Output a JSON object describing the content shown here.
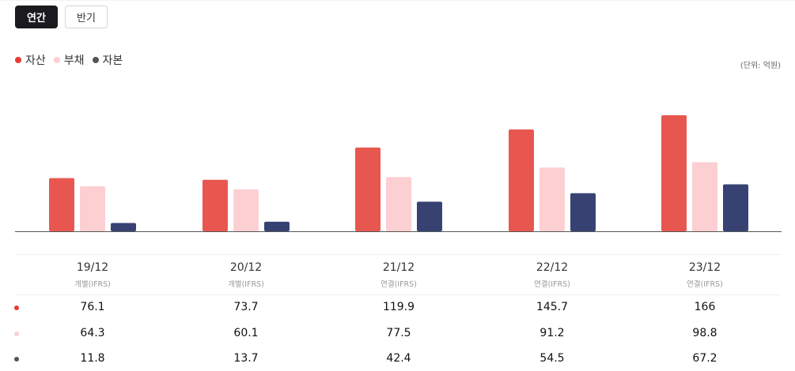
{
  "tabs": [
    {
      "label": "연간",
      "active": true
    },
    {
      "label": "반기",
      "active": false
    }
  ],
  "unit_label": "(단위: 억원)",
  "colors": {
    "asset": "#e8574f",
    "liability": "#fccfd3",
    "equity": "#374273",
    "axis": "#555555"
  },
  "chart_data": {
    "type": "bar",
    "title": "",
    "categories": [
      "19/12",
      "20/12",
      "21/12",
      "22/12",
      "23/12"
    ],
    "bases": [
      "개별(IFRS)",
      "개별(IFRS)",
      "연결(IFRS)",
      "연결(IFRS)",
      "연결(IFRS)"
    ],
    "series": [
      {
        "key": "asset",
        "name": "자산",
        "values": [
          76.1,
          73.7,
          119.9,
          145.7,
          166
        ]
      },
      {
        "key": "liability",
        "name": "부채",
        "values": [
          64.3,
          60.1,
          77.5,
          91.2,
          98.8
        ]
      },
      {
        "key": "equity",
        "name": "자본",
        "values": [
          11.8,
          13.7,
          42.4,
          54.5,
          67.2
        ]
      }
    ],
    "ylim": [
      0,
      180
    ],
    "grid": false,
    "legend": "top-left"
  },
  "table": {
    "values": [
      [
        "76.1",
        "73.7",
        "119.9",
        "145.7",
        "166"
      ],
      [
        "64.3",
        "60.1",
        "77.5",
        "91.2",
        "98.8"
      ],
      [
        "11.8",
        "13.7",
        "42.4",
        "54.5",
        "67.2"
      ]
    ]
  }
}
